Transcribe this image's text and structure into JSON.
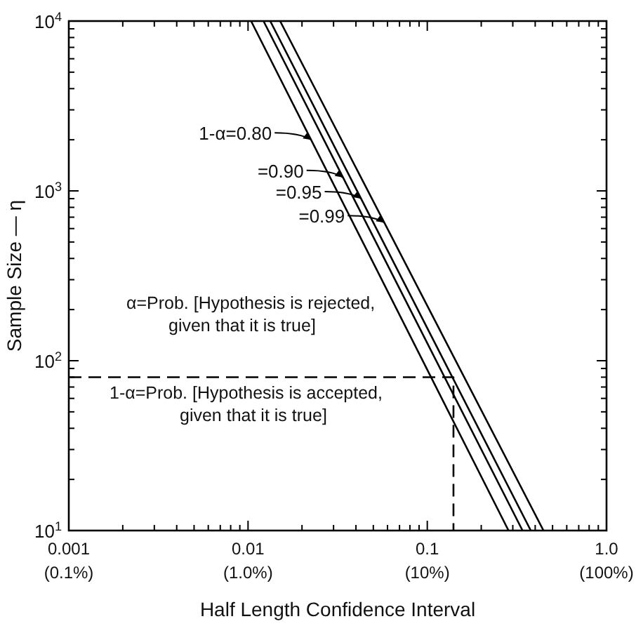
{
  "chart_data": {
    "type": "line",
    "xlabel": "Half Length Confidence Interval",
    "ylabel": "Sample Size — η",
    "log": "xy",
    "xlim": [
      0.001,
      1
    ],
    "ylim": [
      10,
      10000
    ],
    "xticks": [
      0.001,
      {
        "value": 0.002,
        "label": null
      },
      {
        "value": 0.003,
        "label": null
      },
      {
        "value": 0.004,
        "label": null
      },
      {
        "value": 0.005,
        "label": null
      },
      {
        "value": 0.006,
        "label": null
      },
      {
        "value": 0.007,
        "label": null
      },
      {
        "value": 0.008,
        "label": null
      },
      {
        "value": 0.009,
        "label": null
      },
      0.01,
      {
        "value": 0.02,
        "label": null
      },
      {
        "value": 0.03,
        "label": null
      },
      {
        "value": 0.04,
        "label": null
      },
      {
        "value": 0.05,
        "label": null
      },
      {
        "value": 0.06,
        "label": null
      },
      {
        "value": 0.07,
        "label": null
      },
      {
        "value": 0.08,
        "label": null
      },
      {
        "value": 0.09,
        "label": null
      },
      0.1,
      {
        "value": 0.2,
        "label": null
      },
      {
        "value": 0.3,
        "label": null
      },
      {
        "value": 0.4,
        "label": null
      },
      {
        "value": 0.5,
        "label": null
      },
      {
        "value": 0.6,
        "label": null
      },
      {
        "value": 0.7,
        "label": null
      },
      {
        "value": 0.8,
        "label": null
      },
      {
        "value": 0.9,
        "label": null
      },
      {
        "value": 1,
        "label": "1.0"
      }
    ],
    "yticks": [
      {
        "value": 10,
        "label": "10$^{1}$"
      },
      {
        "value": 20,
        "label": null
      },
      {
        "value": 30,
        "label": null
      },
      {
        "value": 40,
        "label": null
      },
      {
        "value": 50,
        "label": null
      },
      {
        "value": 60,
        "label": null
      },
      {
        "value": 70,
        "label": null
      },
      {
        "value": 80,
        "label": null
      },
      {
        "value": 90,
        "label": null
      },
      {
        "value": 100,
        "label": "10$^{2}$"
      },
      {
        "value": 200,
        "label": null
      },
      {
        "value": 300,
        "label": null
      },
      {
        "value": 400,
        "label": null
      },
      {
        "value": 500,
        "label": null
      },
      {
        "value": 600,
        "label": null
      },
      {
        "value": 700,
        "label": null
      },
      {
        "value": 800,
        "label": null
      },
      {
        "value": 900,
        "label": null
      },
      {
        "value": 1000,
        "label": "10$^{3}$"
      },
      {
        "value": 2000,
        "label": null
      },
      {
        "value": 3000,
        "label": null
      },
      {
        "value": 4000,
        "label": null
      },
      {
        "value": 5000,
        "label": null
      },
      {
        "value": 6000,
        "label": null
      },
      {
        "value": 7000,
        "label": null
      },
      {
        "value": 8000,
        "label": null
      },
      {
        "value": 9000,
        "label": null
      },
      {
        "value": 10000,
        "label": "10$^{4}$"
      }
    ],
    "grid": false,
    "series": [
      {
        "color": "#000000",
        "x": [
          0.0104,
          0.284
        ],
        "values": [
          10000,
          10
        ]
      },
      {
        "color": "#000000",
        "x": [
          0.0122,
          0.34
        ],
        "values": [
          10000,
          10
        ]
      },
      {
        "color": "#000000",
        "x": [
          0.0133,
          0.378
        ],
        "values": [
          10000,
          10
        ]
      },
      {
        "color": "#000000",
        "x": [
          0.0151,
          0.445
        ],
        "values": [
          10000,
          10
        ]
      },
      {
        "color": "#000000",
        "line_style": "dashed",
        "x": [
          0.001,
          0.14,
          0.14
        ],
        "values": [
          80,
          80,
          10
        ]
      }
    ],
    "annotations": [
      "(0.1%)",
      "(1.0%)",
      "(10%)",
      "(100%)",
      {
        "text": "1-α=0.80",
        "x": 0.0225,
        "y": 2000
      },
      {
        "text": "=0.90",
        "x": 0.0339,
        "y": 1200
      },
      {
        "text": "=0.95",
        "x": 0.0428,
        "y": 900
      },
      {
        "text": "=0.99",
        "x": 0.0575,
        "y": 650
      },
      "α=Prob. [Hypothesis is rejected,\ngiven that it is true]",
      "1-α=Prob. [Hypothesis is accepted,\ngiven that it is true]"
    ]
  }
}
